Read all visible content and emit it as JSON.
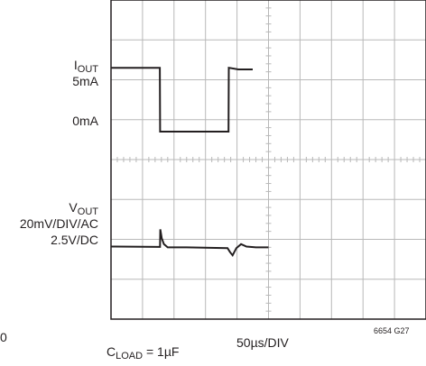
{
  "chart_data": {
    "type": "line",
    "grid": true,
    "divisions": {
      "x": 10,
      "y": 8
    },
    "xlabel": "50µs/DIV",
    "x_unit_per_div": "50µs",
    "figure_id": "6654 G27",
    "cut_label": "0",
    "footnote": {
      "main": "C",
      "sub": "LOAD",
      "rest": " = 1µF"
    },
    "channels": [
      {
        "name_main": "I",
        "name_sub": "OUT",
        "scale_lines": [
          "5mA"
        ],
        "zero_label": "0mA",
        "trace": [
          [
            0,
            1.7
          ],
          [
            1.55,
            1.7
          ],
          [
            1.56,
            3.3
          ],
          [
            3.73,
            3.3
          ],
          [
            3.74,
            1.7
          ],
          [
            4.04,
            1.74
          ],
          [
            4.5,
            1.74
          ]
        ]
      },
      {
        "name_main": "V",
        "name_sub": "OUT",
        "scale_lines": [
          "20mV/DIV/AC",
          "2.5V/DC"
        ],
        "trace": [
          [
            0,
            6.18
          ],
          [
            1.5,
            6.19
          ],
          [
            1.555,
            6.19
          ],
          [
            1.565,
            5.75
          ],
          [
            1.61,
            5.97
          ],
          [
            1.68,
            6.12
          ],
          [
            1.8,
            6.2
          ],
          [
            2.4,
            6.2
          ],
          [
            3.7,
            6.22
          ],
          [
            3.78,
            6.32
          ],
          [
            3.86,
            6.4
          ],
          [
            3.98,
            6.22
          ],
          [
            4.13,
            6.12
          ],
          [
            4.3,
            6.18
          ],
          [
            4.6,
            6.2
          ],
          [
            5.0,
            6.2
          ]
        ]
      }
    ]
  }
}
